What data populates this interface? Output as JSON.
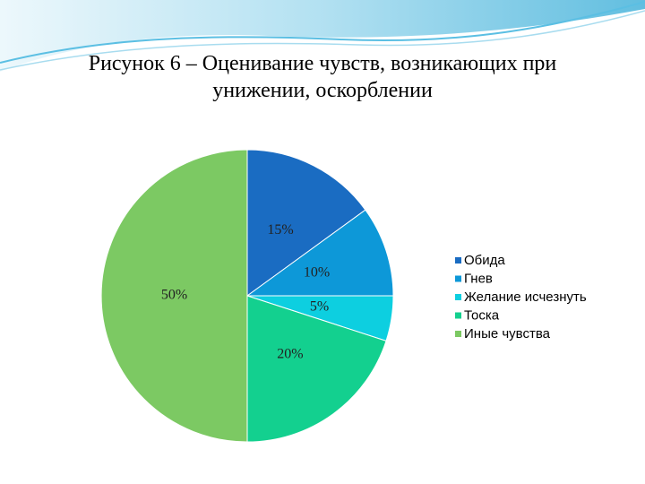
{
  "chart_data": {
    "type": "pie",
    "title": "Рисунок 6 – Оценивание чувств, возникающих при унижении, оскорблении",
    "categories": [
      "Обида",
      "Гнев",
      "Желание исчезнуть",
      "Тоска",
      "Иные чувства"
    ],
    "values": [
      15,
      10,
      5,
      20,
      50
    ],
    "value_labels": [
      "15%",
      "10%",
      "5%",
      "20%",
      "50%"
    ],
    "colors": [
      "#1a6cc2",
      "#0d98d8",
      "#0dcfe0",
      "#13d08f",
      "#7cc963"
    ],
    "legend": "right"
  }
}
